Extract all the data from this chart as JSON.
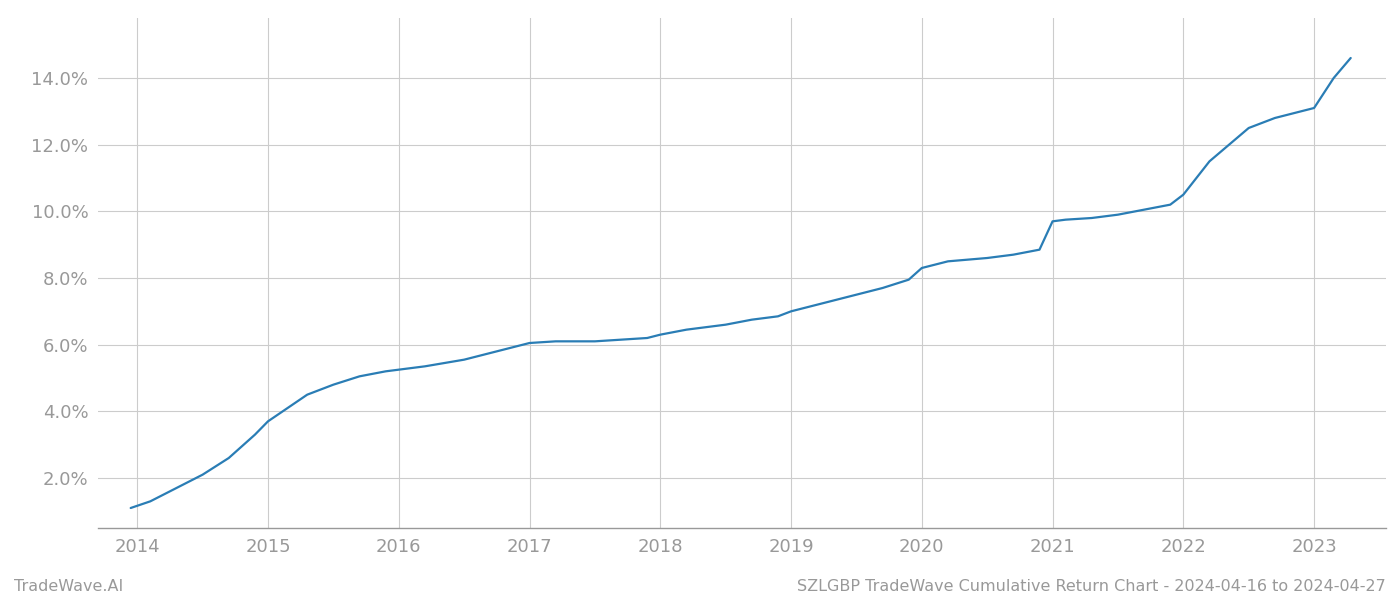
{
  "title": "SZLGBP TradeWave Cumulative Return Chart - 2024-04-16 to 2024-04-27",
  "watermark": "TradeWave.AI",
  "line_color": "#2a7db5",
  "background_color": "#ffffff",
  "grid_color": "#cccccc",
  "x_values": [
    2013.95,
    2014.1,
    2014.3,
    2014.5,
    2014.7,
    2014.9,
    2015.0,
    2015.15,
    2015.3,
    2015.5,
    2015.7,
    2015.9,
    2016.0,
    2016.2,
    2016.5,
    2016.7,
    2016.9,
    2017.0,
    2017.2,
    2017.5,
    2017.7,
    2017.9,
    2018.0,
    2018.2,
    2018.5,
    2018.7,
    2018.9,
    2019.0,
    2019.2,
    2019.5,
    2019.7,
    2019.9,
    2020.0,
    2020.2,
    2020.5,
    2020.7,
    2020.9,
    2021.0,
    2021.1,
    2021.3,
    2021.5,
    2021.7,
    2021.9,
    2022.0,
    2022.2,
    2022.5,
    2022.7,
    2022.9,
    2023.0,
    2023.15,
    2023.28
  ],
  "y_values": [
    1.1,
    1.3,
    1.7,
    2.1,
    2.6,
    3.3,
    3.7,
    4.1,
    4.5,
    4.8,
    5.05,
    5.2,
    5.25,
    5.35,
    5.55,
    5.75,
    5.95,
    6.05,
    6.1,
    6.1,
    6.15,
    6.2,
    6.3,
    6.45,
    6.6,
    6.75,
    6.85,
    7.0,
    7.2,
    7.5,
    7.7,
    7.95,
    8.3,
    8.5,
    8.6,
    8.7,
    8.85,
    9.7,
    9.75,
    9.8,
    9.9,
    10.05,
    10.2,
    10.5,
    11.5,
    12.5,
    12.8,
    13.0,
    13.1,
    14.0,
    14.6
  ],
  "xlim": [
    2013.7,
    2023.55
  ],
  "ylim": [
    0.5,
    15.8
  ],
  "xticks": [
    2014,
    2015,
    2016,
    2017,
    2018,
    2019,
    2020,
    2021,
    2022,
    2023
  ],
  "yticks": [
    2.0,
    4.0,
    6.0,
    8.0,
    10.0,
    12.0,
    14.0
  ],
  "ytick_labels": [
    "2.0%",
    "4.0%",
    "6.0%",
    "8.0%",
    "10.0%",
    "12.0%",
    "14.0%"
  ],
  "line_width": 1.6,
  "tick_color": "#999999",
  "tick_fontsize": 13,
  "footer_fontsize": 11.5,
  "footer_color": "#999999"
}
